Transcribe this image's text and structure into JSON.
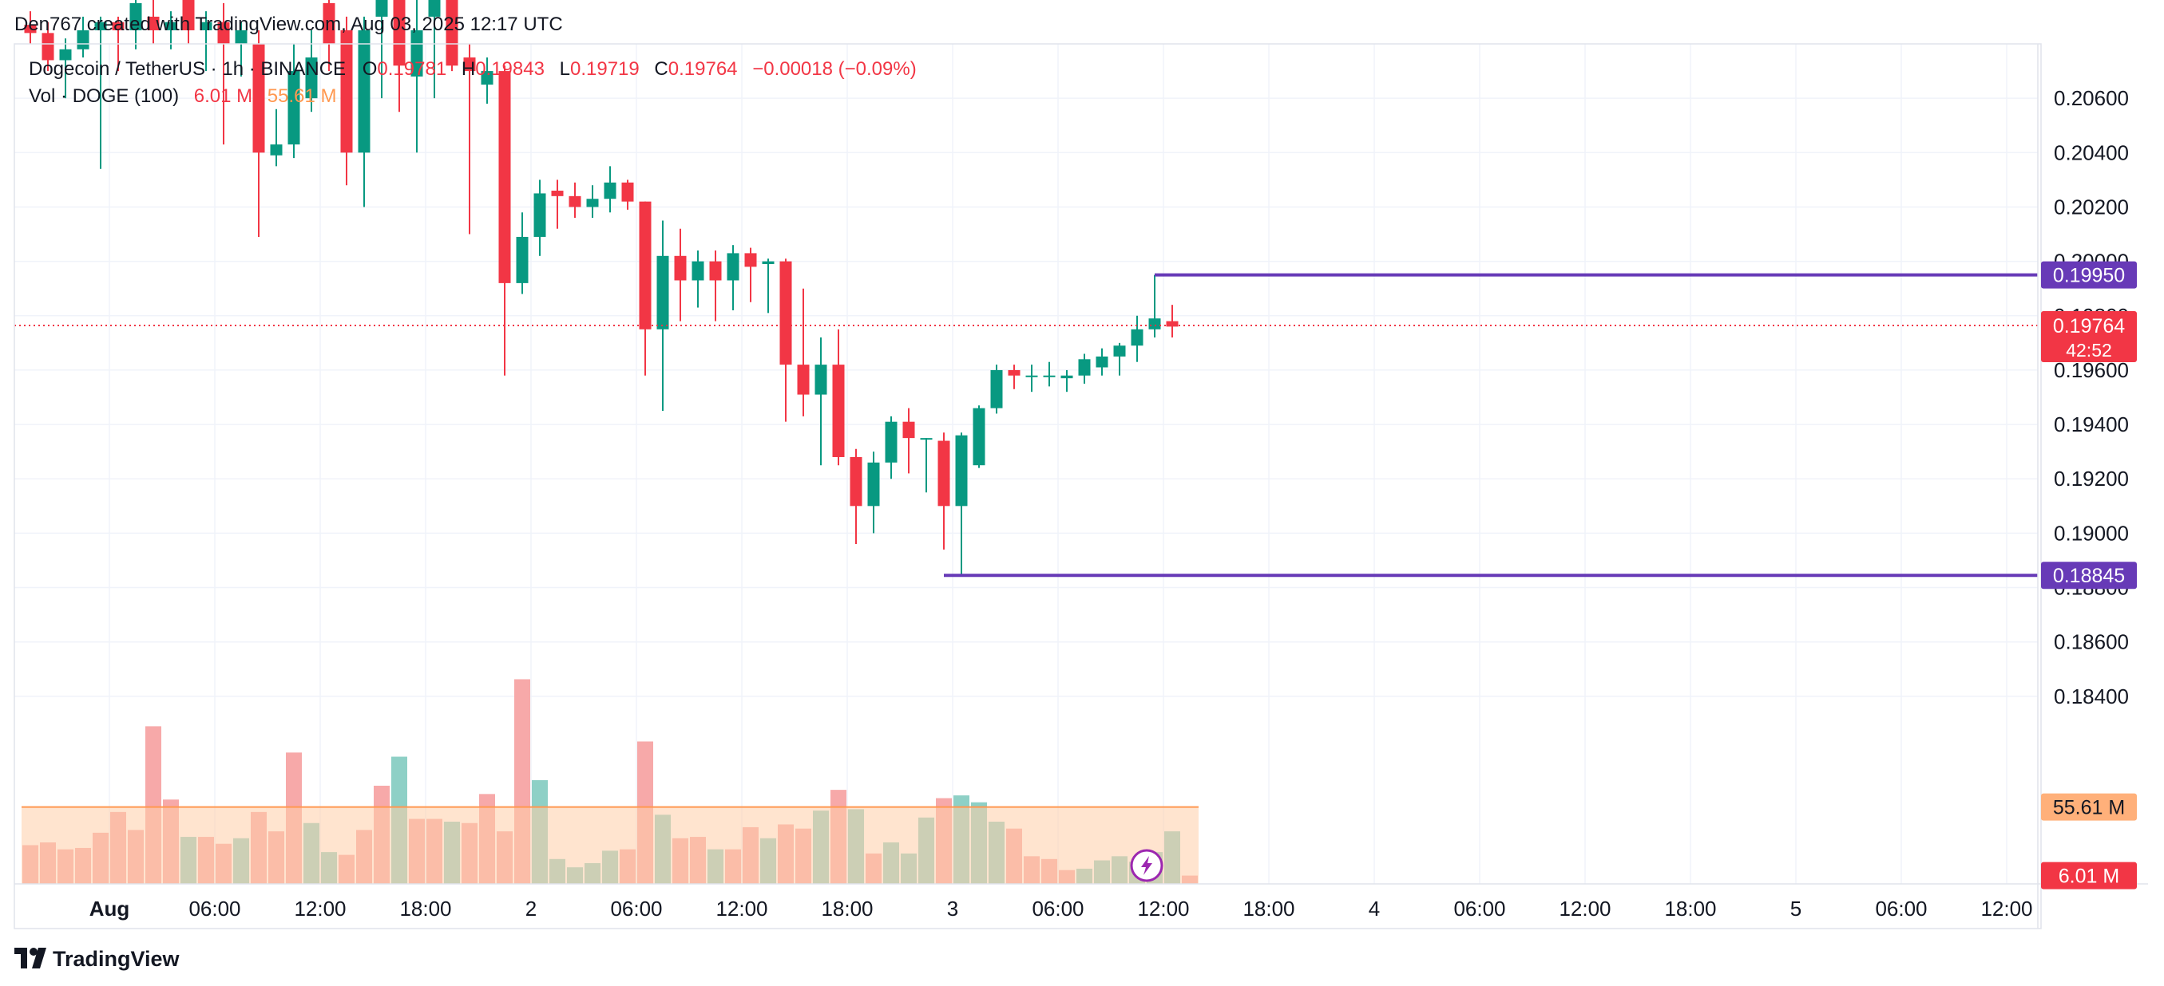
{
  "header": {
    "attribution": "Den767 created with TradingView.com, Aug 03, 2025 12:17 UTC"
  },
  "legend": {
    "symbol": "Dogecoin / TetherUS · 1h · BINANCE",
    "open_label": "O",
    "open_value": "0.19781",
    "high_label": "H",
    "high_value": "0.19843",
    "low_label": "L",
    "low_value": "0.19719",
    "close_label": "C",
    "close_value": "0.19764",
    "change": "−0.00018 (−0.09%)",
    "vol_label": "Vol · DOGE (100)",
    "vol_value": "6.01 M",
    "vol_ma_value": "55.61 M"
  },
  "footer": {
    "brand": "TradingView",
    "logo_text": "TV"
  },
  "colors": {
    "up": "#089981",
    "down": "#f23645",
    "up_volume": "#8ed0c6",
    "down_volume": "#f7a9a9",
    "volume_ma": "#ffcda8",
    "line": "#673ab7",
    "grid": "#f0f3fa",
    "text": "#131722",
    "axis_text": "#131722"
  },
  "chart_data": {
    "type": "candlestick",
    "title": "Dogecoin / TetherUS · 1h · BINANCE",
    "xlabel": "",
    "ylabel": "",
    "ylim": [
      0.1771,
      0.208
    ],
    "grid": true,
    "y_ticks": [
      0.206,
      0.204,
      0.202,
      0.2,
      0.198,
      0.196,
      0.194,
      0.192,
      0.19,
      0.188,
      0.186,
      0.184
    ],
    "y_tick_labels": [
      "0.20600",
      "0.20400",
      "0.20200",
      "0.20000",
      "0.19800",
      "0.19600",
      "0.19400",
      "0.19200",
      "0.19000",
      "0.18800",
      "0.18600",
      "0.18400"
    ],
    "x_ticks": [
      {
        "bar": 4.5,
        "label": "Aug",
        "bold": true
      },
      {
        "bar": 10.5,
        "label": "06:00"
      },
      {
        "bar": 16.5,
        "label": "12:00"
      },
      {
        "bar": 22.5,
        "label": "18:00"
      },
      {
        "bar": 28.5,
        "label": "2"
      },
      {
        "bar": 34.5,
        "label": "06:00"
      },
      {
        "bar": 40.5,
        "label": "12:00"
      },
      {
        "bar": 46.5,
        "label": "18:00"
      },
      {
        "bar": 52.5,
        "label": "3"
      },
      {
        "bar": 58.5,
        "label": "06:00"
      },
      {
        "bar": 64.5,
        "label": "12:00"
      },
      {
        "bar": 70.5,
        "label": "18:00"
      },
      {
        "bar": 76.5,
        "label": "4"
      },
      {
        "bar": 82.5,
        "label": "06:00"
      },
      {
        "bar": 88.5,
        "label": "12:00"
      },
      {
        "bar": 94.5,
        "label": "18:00"
      },
      {
        "bar": 100.5,
        "label": "5"
      },
      {
        "bar": 106.5,
        "label": "06:00"
      },
      {
        "bar": 112.5,
        "label": "12:00"
      }
    ],
    "bars_visible": 116,
    "candles": [
      {
        "o": 0.2087,
        "h": 0.2092,
        "l": 0.208,
        "c": 0.2084
      },
      {
        "o": 0.2084,
        "h": 0.2088,
        "l": 0.207,
        "c": 0.2074
      },
      {
        "o": 0.2074,
        "h": 0.2082,
        "l": 0.206,
        "c": 0.2078
      },
      {
        "o": 0.2078,
        "h": 0.209,
        "l": 0.2075,
        "c": 0.2085
      },
      {
        "o": 0.2085,
        "h": 0.209,
        "l": 0.2034,
        "c": 0.2088
      },
      {
        "o": 0.2088,
        "h": 0.209,
        "l": 0.207,
        "c": 0.2085
      },
      {
        "o": 0.2085,
        "h": 0.21,
        "l": 0.2078,
        "c": 0.2095
      },
      {
        "o": 0.209,
        "h": 0.2098,
        "l": 0.208,
        "c": 0.2085
      },
      {
        "o": 0.2085,
        "h": 0.2092,
        "l": 0.2078,
        "c": 0.2088
      },
      {
        "o": 0.21,
        "h": 0.211,
        "l": 0.208,
        "c": 0.2085
      },
      {
        "o": 0.2085,
        "h": 0.2092,
        "l": 0.207,
        "c": 0.2088
      },
      {
        "o": 0.2088,
        "h": 0.2095,
        "l": 0.2043,
        "c": 0.208
      },
      {
        "o": 0.208,
        "h": 0.2088,
        "l": 0.2068,
        "c": 0.2085
      },
      {
        "o": 0.208,
        "h": 0.2085,
        "l": 0.2009,
        "c": 0.204
      },
      {
        "o": 0.2039,
        "h": 0.2056,
        "l": 0.2035,
        "c": 0.2043
      },
      {
        "o": 0.2043,
        "h": 0.208,
        "l": 0.2038,
        "c": 0.207
      },
      {
        "o": 0.206,
        "h": 0.2085,
        "l": 0.2055,
        "c": 0.2075
      },
      {
        "o": 0.2095,
        "h": 0.2105,
        "l": 0.207,
        "c": 0.208
      },
      {
        "o": 0.2085,
        "h": 0.209,
        "l": 0.2028,
        "c": 0.204
      },
      {
        "o": 0.204,
        "h": 0.209,
        "l": 0.202,
        "c": 0.2085
      },
      {
        "o": 0.209,
        "h": 0.211,
        "l": 0.206,
        "c": 0.21
      },
      {
        "o": 0.21,
        "h": 0.211,
        "l": 0.2055,
        "c": 0.2072
      },
      {
        "o": 0.2068,
        "h": 0.21,
        "l": 0.204,
        "c": 0.2085
      },
      {
        "o": 0.209,
        "h": 0.2105,
        "l": 0.206,
        "c": 0.21
      },
      {
        "o": 0.21,
        "h": 0.211,
        "l": 0.207,
        "c": 0.2072
      },
      {
        "o": 0.2075,
        "h": 0.208,
        "l": 0.201,
        "c": 0.207
      },
      {
        "o": 0.2065,
        "h": 0.2075,
        "l": 0.2058,
        "c": 0.207
      },
      {
        "o": 0.207,
        "h": 0.2072,
        "l": 0.1958,
        "c": 0.1992
      },
      {
        "o": 0.1992,
        "h": 0.2018,
        "l": 0.1988,
        "c": 0.2009
      },
      {
        "o": 0.2009,
        "h": 0.203,
        "l": 0.2002,
        "c": 0.2025
      },
      {
        "o": 0.2026,
        "h": 0.203,
        "l": 0.2012,
        "c": 0.2024
      },
      {
        "o": 0.2024,
        "h": 0.2029,
        "l": 0.2016,
        "c": 0.202
      },
      {
        "o": 0.202,
        "h": 0.2028,
        "l": 0.2016,
        "c": 0.2023
      },
      {
        "o": 0.2023,
        "h": 0.2035,
        "l": 0.2018,
        "c": 0.2029
      },
      {
        "o": 0.2029,
        "h": 0.203,
        "l": 0.2019,
        "c": 0.2022
      },
      {
        "o": 0.2022,
        "h": 0.2022,
        "l": 0.1958,
        "c": 0.1975
      },
      {
        "o": 0.1975,
        "h": 0.2015,
        "l": 0.1945,
        "c": 0.2002
      },
      {
        "o": 0.2002,
        "h": 0.2012,
        "l": 0.1978,
        "c": 0.1993
      },
      {
        "o": 0.1993,
        "h": 0.2004,
        "l": 0.1983,
        "c": 0.2
      },
      {
        "o": 0.2,
        "h": 0.2004,
        "l": 0.1978,
        "c": 0.1993
      },
      {
        "o": 0.1993,
        "h": 0.2006,
        "l": 0.1982,
        "c": 0.2003
      },
      {
        "o": 0.2003,
        "h": 0.2005,
        "l": 0.1985,
        "c": 0.1998
      },
      {
        "o": 0.1999,
        "h": 0.2001,
        "l": 0.1981,
        "c": 0.2
      },
      {
        "o": 0.2,
        "h": 0.2001,
        "l": 0.1941,
        "c": 0.1962
      },
      {
        "o": 0.1962,
        "h": 0.199,
        "l": 0.1943,
        "c": 0.1951
      },
      {
        "o": 0.1951,
        "h": 0.1972,
        "l": 0.1925,
        "c": 0.1962
      },
      {
        "o": 0.1962,
        "h": 0.1975,
        "l": 0.1925,
        "c": 0.1928
      },
      {
        "o": 0.1928,
        "h": 0.1931,
        "l": 0.1896,
        "c": 0.191
      },
      {
        "o": 0.191,
        "h": 0.193,
        "l": 0.19,
        "c": 0.1926
      },
      {
        "o": 0.1926,
        "h": 0.1943,
        "l": 0.192,
        "c": 0.1941
      },
      {
        "o": 0.1941,
        "h": 0.1946,
        "l": 0.1922,
        "c": 0.1935
      },
      {
        "o": 0.1935,
        "h": 0.1935,
        "l": 0.1915,
        "c": 0.1935
      },
      {
        "o": 0.1934,
        "h": 0.1937,
        "l": 0.1894,
        "c": 0.191
      },
      {
        "o": 0.191,
        "h": 0.1937,
        "l": 0.1885,
        "c": 0.1936
      },
      {
        "o": 0.1925,
        "h": 0.1947,
        "l": 0.1924,
        "c": 0.1946
      },
      {
        "o": 0.1946,
        "h": 0.1962,
        "l": 0.1944,
        "c": 0.196
      },
      {
        "o": 0.196,
        "h": 0.1962,
        "l": 0.1953,
        "c": 0.1958
      },
      {
        "o": 0.1958,
        "h": 0.1962,
        "l": 0.1952,
        "c": 0.1958
      },
      {
        "o": 0.1958,
        "h": 0.1963,
        "l": 0.1954,
        "c": 0.1958
      },
      {
        "o": 0.1957,
        "h": 0.196,
        "l": 0.1952,
        "c": 0.1958
      },
      {
        "o": 0.1958,
        "h": 0.1966,
        "l": 0.1955,
        "c": 0.1964
      },
      {
        "o": 0.1961,
        "h": 0.1968,
        "l": 0.1958,
        "c": 0.1965
      },
      {
        "o": 0.1965,
        "h": 0.197,
        "l": 0.1958,
        "c": 0.1969
      },
      {
        "o": 0.1969,
        "h": 0.198,
        "l": 0.1963,
        "c": 0.1975
      },
      {
        "o": 0.1975,
        "h": 0.1995,
        "l": 0.1972,
        "c": 0.1979
      },
      {
        "o": 0.1978,
        "h": 0.1984,
        "l": 0.1972,
        "c": 0.1976
      }
    ],
    "volume": [
      {
        "v": 28,
        "up": false
      },
      {
        "v": 30,
        "up": false
      },
      {
        "v": 25,
        "up": false
      },
      {
        "v": 26,
        "up": false
      },
      {
        "v": 37,
        "up": false
      },
      {
        "v": 52,
        "up": false
      },
      {
        "v": 39,
        "up": false
      },
      {
        "v": 114,
        "up": false
      },
      {
        "v": 61,
        "up": false
      },
      {
        "v": 34,
        "up": true
      },
      {
        "v": 34,
        "up": false
      },
      {
        "v": 29,
        "up": false
      },
      {
        "v": 33,
        "up": true
      },
      {
        "v": 52,
        "up": false
      },
      {
        "v": 38,
        "up": false
      },
      {
        "v": 95,
        "up": false
      },
      {
        "v": 44,
        "up": true
      },
      {
        "v": 23,
        "up": true
      },
      {
        "v": 21,
        "up": false
      },
      {
        "v": 39,
        "up": false
      },
      {
        "v": 71,
        "up": false
      },
      {
        "v": 92,
        "up": true
      },
      {
        "v": 47,
        "up": false
      },
      {
        "v": 47,
        "up": false
      },
      {
        "v": 45,
        "up": true
      },
      {
        "v": 44,
        "up": false
      },
      {
        "v": 65,
        "up": false
      },
      {
        "v": 38,
        "up": false
      },
      {
        "v": 148,
        "up": false
      },
      {
        "v": 75,
        "up": true
      },
      {
        "v": 18,
        "up": true
      },
      {
        "v": 12,
        "up": true
      },
      {
        "v": 15,
        "up": true
      },
      {
        "v": 24,
        "up": true
      },
      {
        "v": 25,
        "up": false
      },
      {
        "v": 103,
        "up": false
      },
      {
        "v": 50,
        "up": true
      },
      {
        "v": 33,
        "up": false
      },
      {
        "v": 34,
        "up": false
      },
      {
        "v": 25,
        "up": true
      },
      {
        "v": 25,
        "up": false
      },
      {
        "v": 41,
        "up": false
      },
      {
        "v": 33,
        "up": true
      },
      {
        "v": 43,
        "up": false
      },
      {
        "v": 40,
        "up": false
      },
      {
        "v": 53,
        "up": true
      },
      {
        "v": 68,
        "up": false
      },
      {
        "v": 54,
        "up": true
      },
      {
        "v": 22,
        "up": false
      },
      {
        "v": 30,
        "up": true
      },
      {
        "v": 22,
        "up": true
      },
      {
        "v": 48,
        "up": true
      },
      {
        "v": 62,
        "up": false
      },
      {
        "v": 64,
        "up": true
      },
      {
        "v": 59,
        "up": true
      },
      {
        "v": 45,
        "up": true
      },
      {
        "v": 40,
        "up": false
      },
      {
        "v": 20,
        "up": false
      },
      {
        "v": 18,
        "up": false
      },
      {
        "v": 10,
        "up": false
      },
      {
        "v": 11,
        "up": true
      },
      {
        "v": 17,
        "up": true
      },
      {
        "v": 20,
        "up": true
      },
      {
        "v": 16,
        "up": true
      },
      {
        "v": 23,
        "up": true
      },
      {
        "v": 38,
        "up": true
      },
      {
        "v": 6,
        "up": false
      }
    ],
    "volume_ma_value": 55.61,
    "horizontal_lines": [
      {
        "price": 0.1995,
        "label": "0.19950",
        "start_bar": 64
      },
      {
        "price": 0.18845,
        "label": "0.18845",
        "start_bar": 52
      }
    ],
    "last_price_label": {
      "price": 0.19764,
      "label": "0.19764",
      "countdown": "42:52"
    },
    "volume_labels": [
      {
        "label": "55.61 M",
        "kind": "ma"
      },
      {
        "label": "6.01 M",
        "kind": "last"
      }
    ]
  }
}
